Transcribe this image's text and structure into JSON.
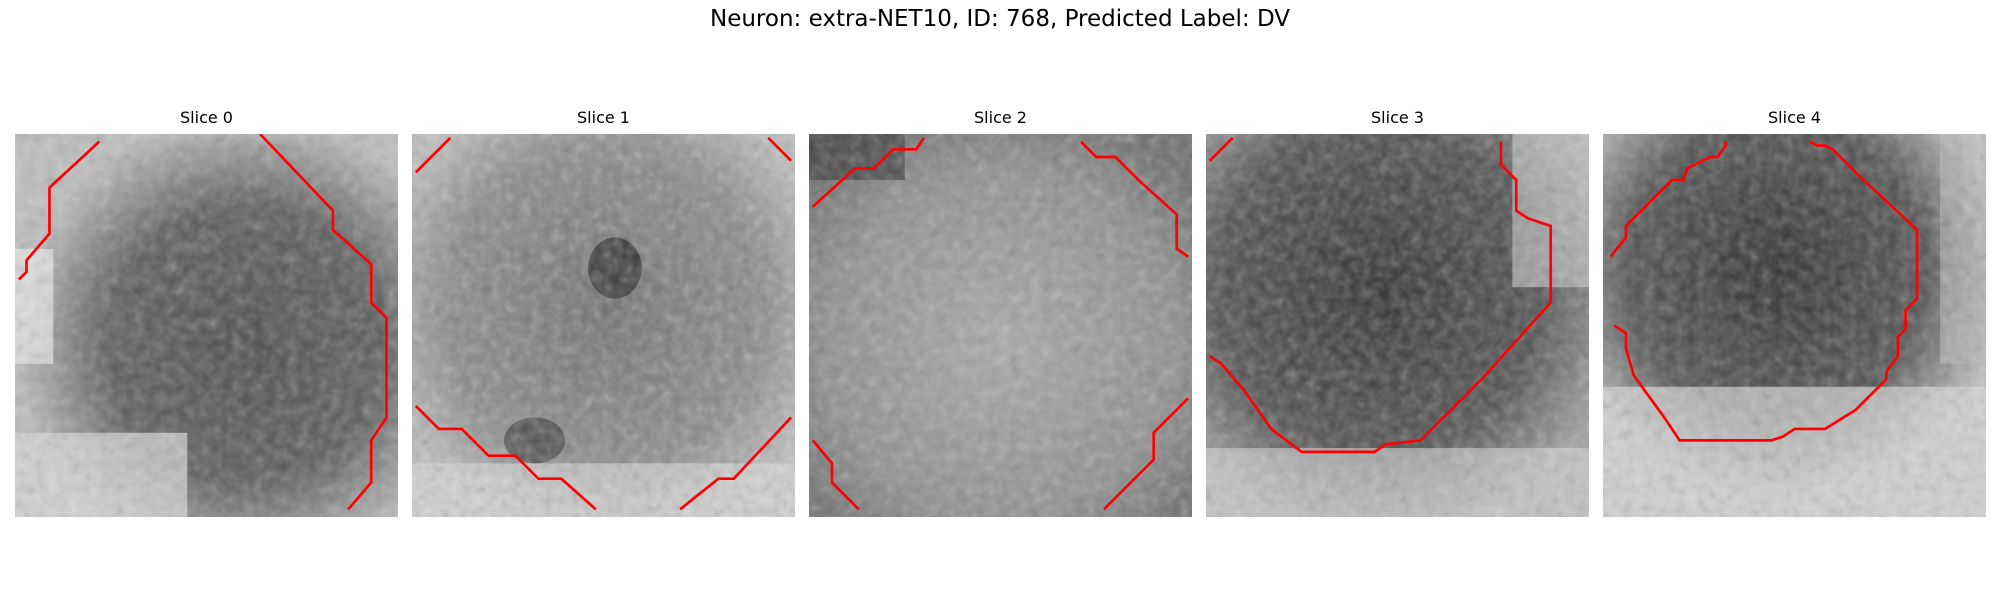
{
  "figure": {
    "title": "Neuron: extra-NET10, ID: 768, Predicted Label: DV",
    "contour_color": "#ff0000"
  },
  "panels": [
    {
      "title": "Slice 0"
    },
    {
      "title": "Slice 1"
    },
    {
      "title": "Slice 2"
    },
    {
      "title": "Slice 3"
    },
    {
      "title": "Slice 4"
    }
  ]
}
